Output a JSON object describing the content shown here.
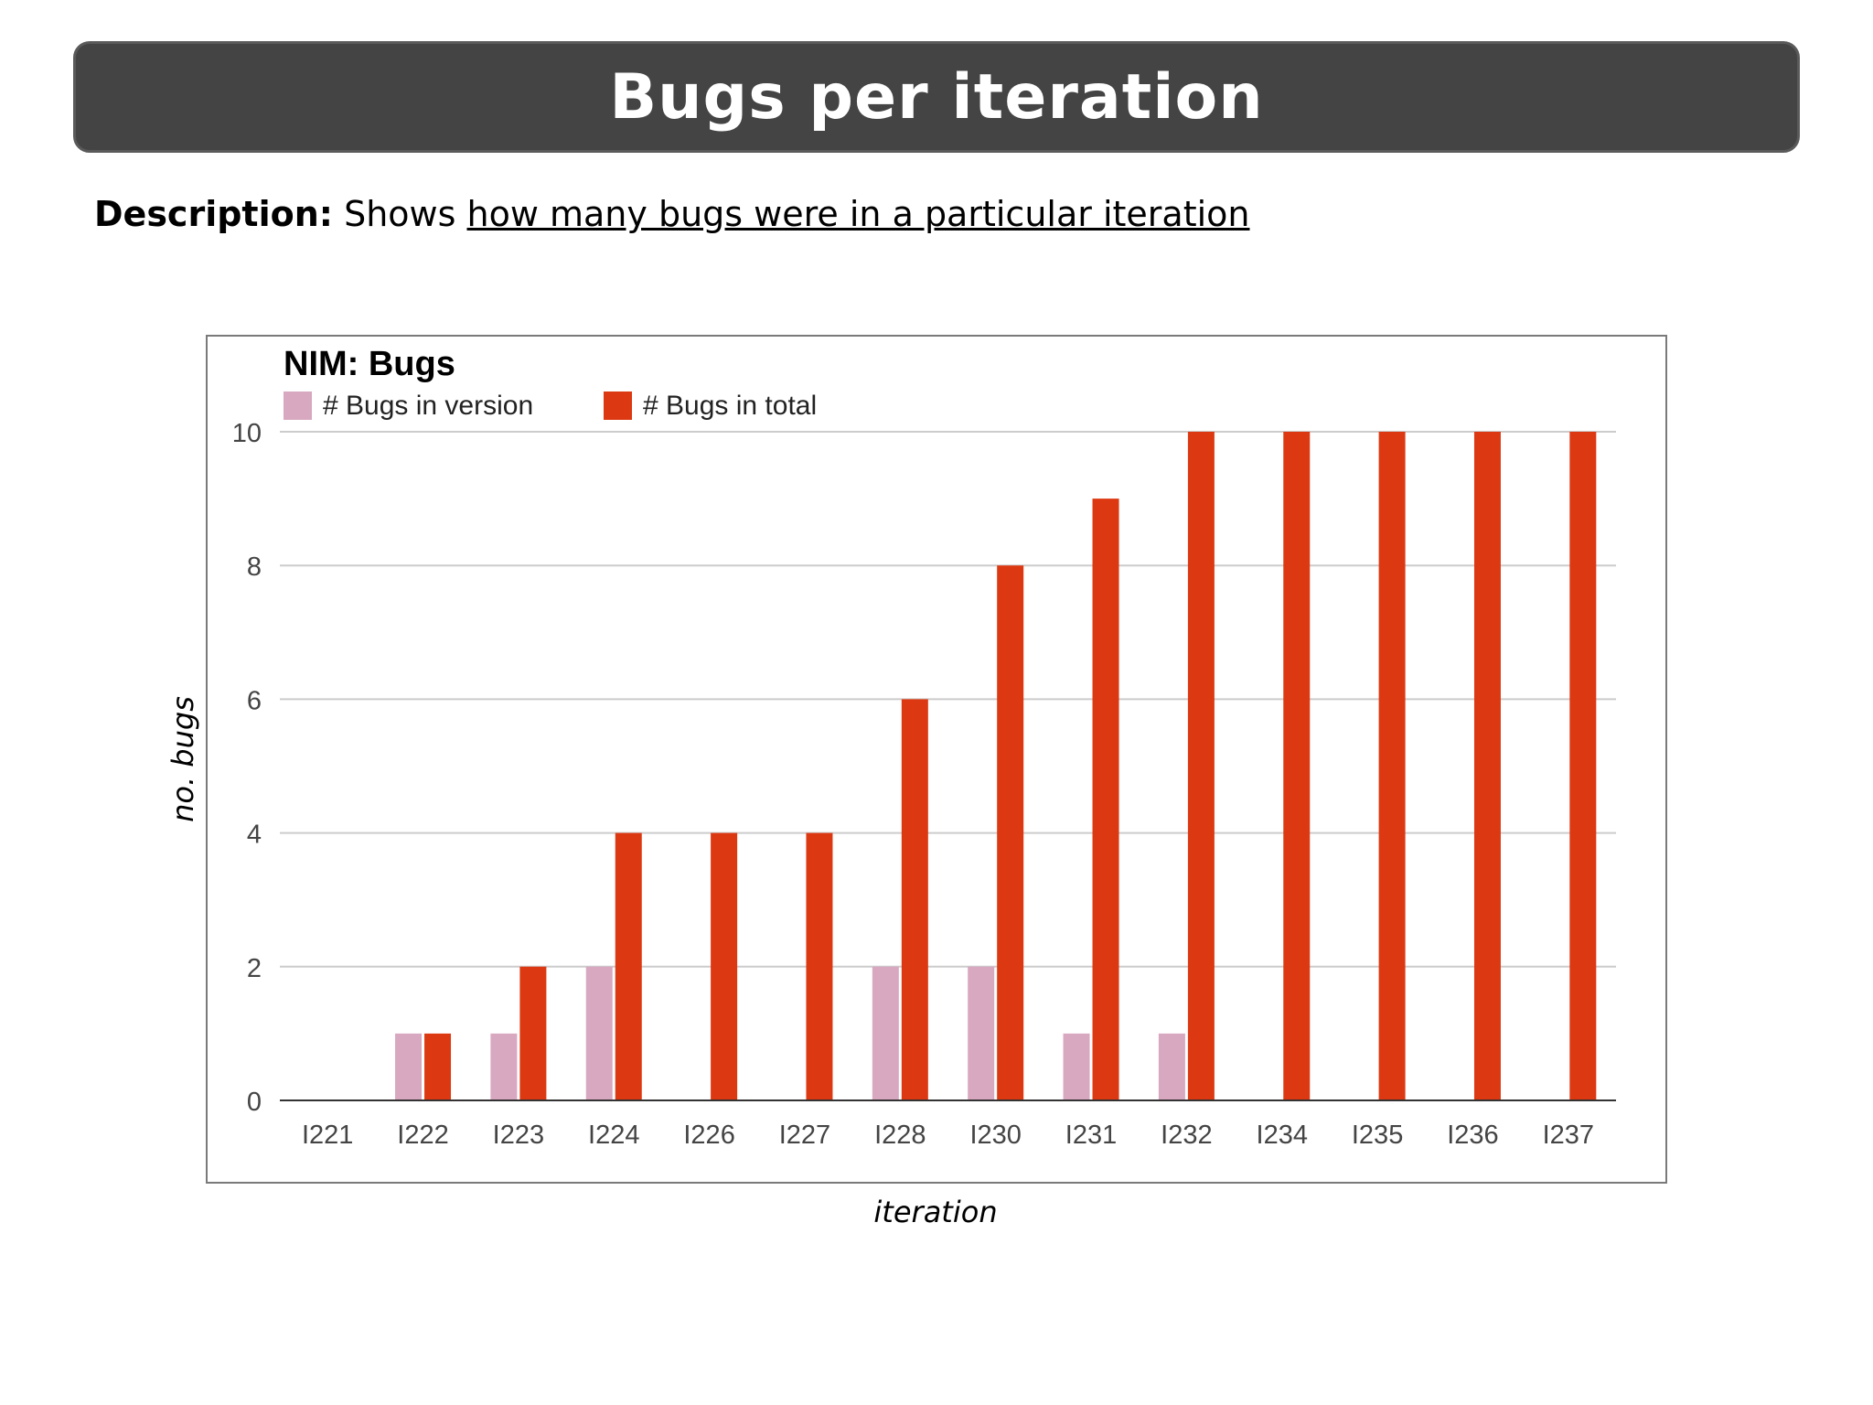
{
  "page": {
    "title": "Bugs per iteration",
    "description_label": "Description:",
    "description_text": "Shows ",
    "description_emph": "how many bugs were in a particular iteration"
  },
  "chart_data": {
    "type": "bar",
    "title": "NIM: Bugs",
    "xlabel": "iteration",
    "ylabel": "no. bugs",
    "categories": [
      "I221",
      "I222",
      "I223",
      "I224",
      "I226",
      "I227",
      "I228",
      "I230",
      "I231",
      "I232",
      "I234",
      "I235",
      "I236",
      "I237"
    ],
    "series": [
      {
        "name": "# Bugs in version",
        "color": "#d8a8c0",
        "values": [
          0,
          1,
          1,
          2,
          0,
          0,
          2,
          2,
          1,
          1,
          0,
          0,
          0,
          0
        ]
      },
      {
        "name": "# Bugs in total",
        "color": "#dc3912",
        "values": [
          0,
          1,
          2,
          4,
          4,
          4,
          6,
          8,
          9,
          10,
          10,
          10,
          10,
          10
        ]
      }
    ],
    "ylim": [
      0,
      10
    ],
    "yticks": [
      0,
      2,
      4,
      6,
      8,
      10
    ],
    "grid": true,
    "legend": "top-left"
  }
}
